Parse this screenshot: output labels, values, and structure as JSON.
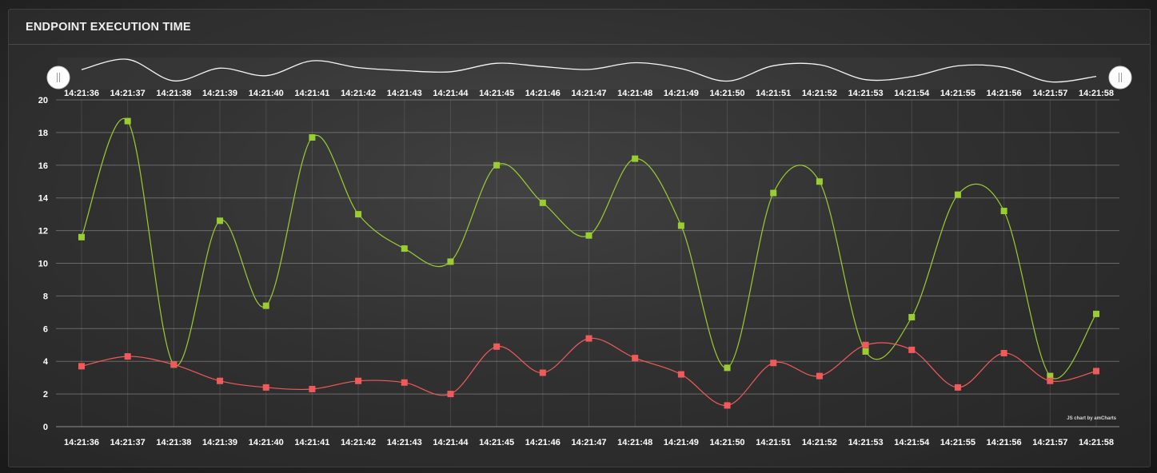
{
  "panel": {
    "title": "ENDPOINT EXECUTION TIME"
  },
  "colors": {
    "series_green": "#9acd32",
    "series_red": "#f05a5a",
    "grid": "#9a9a9a",
    "text": "#ffffff"
  },
  "credit": "JS chart by amCharts",
  "chart_data": {
    "type": "line",
    "smoothed": true,
    "x": [
      "14:21:36",
      "14:21:37",
      "14:21:38",
      "14:21:39",
      "14:21:40",
      "14:21:41",
      "14:21:42",
      "14:21:43",
      "14:21:44",
      "14:21:45",
      "14:21:46",
      "14:21:47",
      "14:21:48",
      "14:21:49",
      "14:21:50",
      "14:21:51",
      "14:21:52",
      "14:21:53",
      "14:21:54",
      "14:21:55",
      "14:21:56",
      "14:21:57",
      "14:21:58"
    ],
    "yticks": [
      0,
      2,
      4,
      6,
      8,
      10,
      12,
      14,
      16,
      18,
      20
    ],
    "ylim": [
      0,
      20
    ],
    "grid": true,
    "scrollbar": true,
    "series": [
      {
        "color": "#9acd32",
        "values": [
          11.6,
          18.7,
          3.8,
          12.6,
          7.4,
          17.7,
          13.0,
          10.9,
          10.1,
          16.0,
          13.7,
          11.7,
          16.4,
          12.3,
          3.6,
          14.3,
          15.0,
          4.6,
          6.7,
          14.2,
          13.2,
          3.1,
          6.9
        ]
      },
      {
        "color": "#f05a5a",
        "values": [
          3.7,
          4.3,
          3.8,
          2.8,
          2.4,
          2.3,
          2.8,
          2.7,
          2.0,
          4.9,
          3.3,
          5.4,
          4.2,
          3.2,
          1.3,
          3.9,
          3.1,
          5.0,
          4.7,
          2.4,
          4.5,
          2.8,
          3.4
        ]
      }
    ]
  }
}
